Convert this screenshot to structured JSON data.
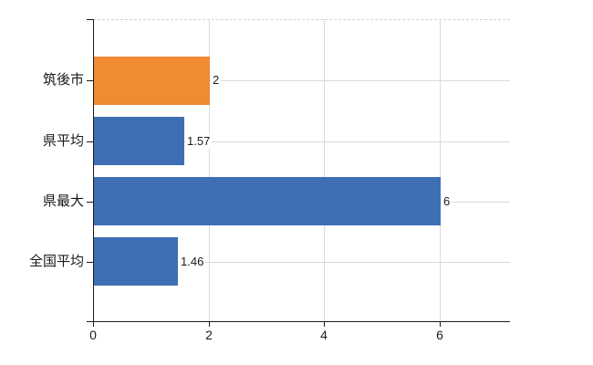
{
  "chart_data": {
    "type": "bar",
    "orientation": "horizontal",
    "title": "",
    "xlabel": "",
    "ylabel": "",
    "categories": [
      "筑後市",
      "県平均",
      "県最大",
      "全国平均"
    ],
    "values": [
      2,
      1.57,
      6,
      1.46
    ],
    "value_labels": [
      "2",
      "1.57",
      "6",
      "1.46"
    ],
    "bar_colors": [
      "#f08a33",
      "#3e6fb4",
      "#3e6fb4",
      "#3e6fb4"
    ],
    "highlight_color": "#f08a33",
    "series_color": "#3e6fb4",
    "xlim": [
      0,
      7.22
    ],
    "x_ticks": [
      0,
      2,
      4,
      6
    ],
    "x_tick_labels": [
      "0",
      "2",
      "4",
      "6"
    ],
    "grid": {
      "vertical_at": [
        2,
        4,
        6
      ],
      "horizontal": "category-centers",
      "color": "#d9d9d9",
      "top_border": "dashed"
    },
    "legend": "none",
    "axis_color": "#1a1a1a",
    "text_color": "#1a1a1a",
    "background": "#ffffff"
  }
}
